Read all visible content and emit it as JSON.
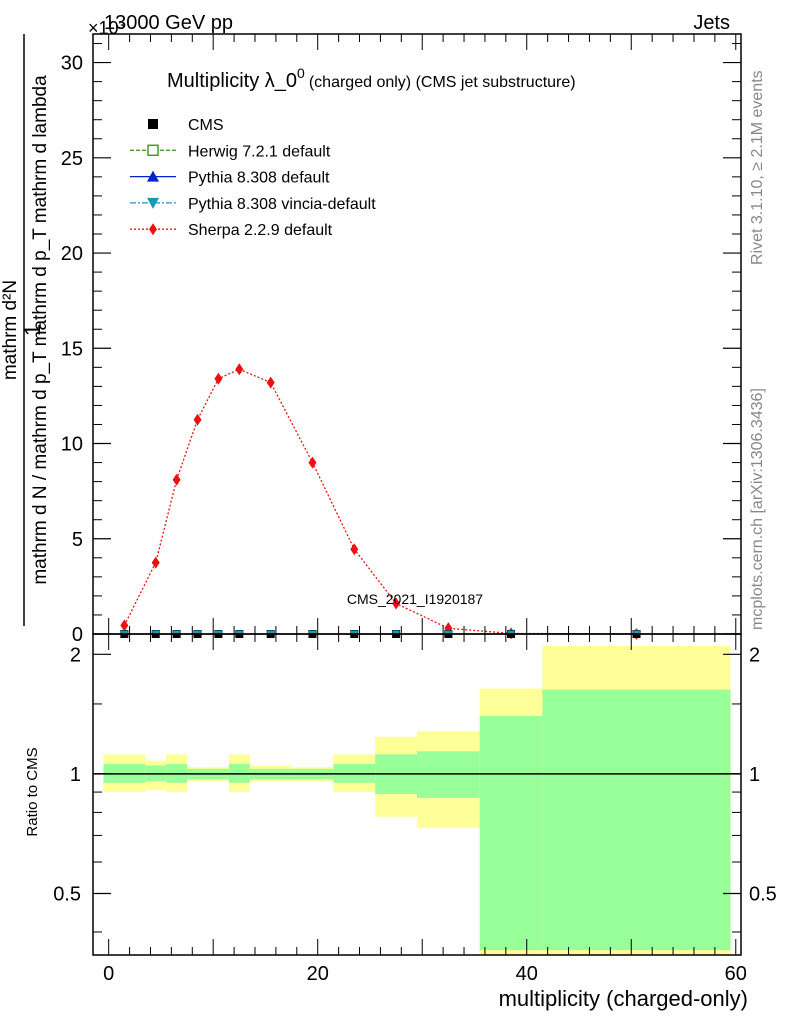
{
  "header": {
    "left": "13000 GeV pp",
    "right": "Jets",
    "exponent": "×10³",
    "rivet_label": "Rivet 3.1.10, ≥ 2.1M events",
    "site_label": "mcplots.cern.ch [arXiv:1306.3436]",
    "watermark": "CMS_2021_I1920187"
  },
  "chart_data": [
    {
      "type": "line",
      "title_main": "Multiplicity λ_0",
      "title_sup": "0",
      "title_suffix": "(charged only) (CMS jet substructure)",
      "ylabel_one": "1",
      "ylabel_numer": "mathrm d²N",
      "ylabel_denom": "mathrm d N / mathrm d p_T mathrm d p_T mathrm d lambda",
      "ylim": [
        0,
        31.5
      ],
      "yticks": [
        "0",
        "5",
        "10",
        "15",
        "20",
        "25",
        "30"
      ],
      "ytick_values": [
        0,
        5,
        10,
        15,
        20,
        25,
        30
      ],
      "xlim": [
        -1.5,
        60.5
      ],
      "legend": [
        {
          "name": "CMS",
          "style": "square-filled",
          "color": "#000000"
        },
        {
          "name": "Herwig 7.2.1 default",
          "style": "square-open",
          "color": "#4a9a2a"
        },
        {
          "name": "Pythia 8.308 default",
          "style": "triangle-up",
          "color": "#0022cc"
        },
        {
          "name": "Pythia 8.308 vincia-default",
          "style": "triangle-down",
          "color": "#1899b8"
        },
        {
          "name": "Sherpa 2.2.9 default",
          "style": "diamond",
          "color": "#ee1111"
        }
      ],
      "series": [
        {
          "name": "Sherpa 2.2.9 default",
          "x": [
            1.5,
            4.5,
            6.5,
            8.5,
            10.5,
            12.5,
            15.5,
            19.5,
            23.5,
            27.5,
            32.5,
            38.5,
            50.5
          ],
          "values": [
            0.45,
            3.75,
            8.1,
            11.25,
            13.4,
            13.9,
            13.2,
            9.0,
            4.45,
            1.6,
            0.3,
            0.03,
            0.0
          ]
        },
        {
          "name": "CMS",
          "x": [
            1.5,
            4.5,
            6.5,
            8.5,
            10.5,
            12.5,
            15.5,
            19.5,
            23.5,
            27.5,
            32.5,
            38.5,
            50.5
          ],
          "values": [
            0.0,
            0.0,
            0.0,
            0.0,
            0.0,
            0.0,
            0.0,
            0.0,
            0.0,
            0.0,
            0.0,
            0.0,
            0.0
          ]
        }
      ]
    },
    {
      "type": "area",
      "ylabel": "Ratio to CMS",
      "xlabel": "multiplicity (charged-only)",
      "ylim": [
        0.35,
        2.25
      ],
      "yticks": [
        "0.5",
        "1",
        "2"
      ],
      "ytick_values": [
        0.5,
        1,
        2
      ],
      "xlim": [
        -1.5,
        60.5
      ],
      "xticks": [
        "0",
        "20",
        "40",
        "60"
      ],
      "xtick_values": [
        0,
        20,
        40,
        60
      ],
      "bands": [
        {
          "x0": -0.5,
          "x1": 3.5,
          "inner": [
            0.95,
            1.06
          ],
          "outer": [
            0.9,
            1.12
          ]
        },
        {
          "x0": 3.5,
          "x1": 5.5,
          "inner": [
            0.96,
            1.05
          ],
          "outer": [
            0.91,
            1.08
          ]
        },
        {
          "x0": 5.5,
          "x1": 7.5,
          "inner": [
            0.95,
            1.06
          ],
          "outer": [
            0.9,
            1.12
          ]
        },
        {
          "x0": 7.5,
          "x1": 9.5,
          "inner": [
            0.97,
            1.03
          ],
          "outer": [
            0.96,
            1.04
          ]
        },
        {
          "x0": 9.5,
          "x1": 11.5,
          "inner": [
            0.97,
            1.03
          ],
          "outer": [
            0.96,
            1.04
          ]
        },
        {
          "x0": 11.5,
          "x1": 13.5,
          "inner": [
            0.95,
            1.06
          ],
          "outer": [
            0.9,
            1.12
          ]
        },
        {
          "x0": 13.5,
          "x1": 17.5,
          "inner": [
            0.97,
            1.03
          ],
          "outer": [
            0.96,
            1.05
          ]
        },
        {
          "x0": 17.5,
          "x1": 21.5,
          "inner": [
            0.97,
            1.03
          ],
          "outer": [
            0.96,
            1.04
          ]
        },
        {
          "x0": 21.5,
          "x1": 25.5,
          "inner": [
            0.95,
            1.06
          ],
          "outer": [
            0.9,
            1.12
          ]
        },
        {
          "x0": 25.5,
          "x1": 29.5,
          "inner": [
            0.89,
            1.12
          ],
          "outer": [
            0.78,
            1.24
          ]
        },
        {
          "x0": 29.5,
          "x1": 35.5,
          "inner": [
            0.87,
            1.14
          ],
          "outer": [
            0.73,
            1.28
          ]
        },
        {
          "x0": 35.5,
          "x1": 41.5,
          "inner": [
            0.36,
            1.4
          ],
          "outer": [
            0.35,
            1.64
          ]
        },
        {
          "x0": 41.5,
          "x1": 59.5,
          "inner": [
            0.36,
            1.63
          ],
          "outer": [
            0.35,
            2.1
          ]
        }
      ],
      "reference_line": 1
    }
  ]
}
